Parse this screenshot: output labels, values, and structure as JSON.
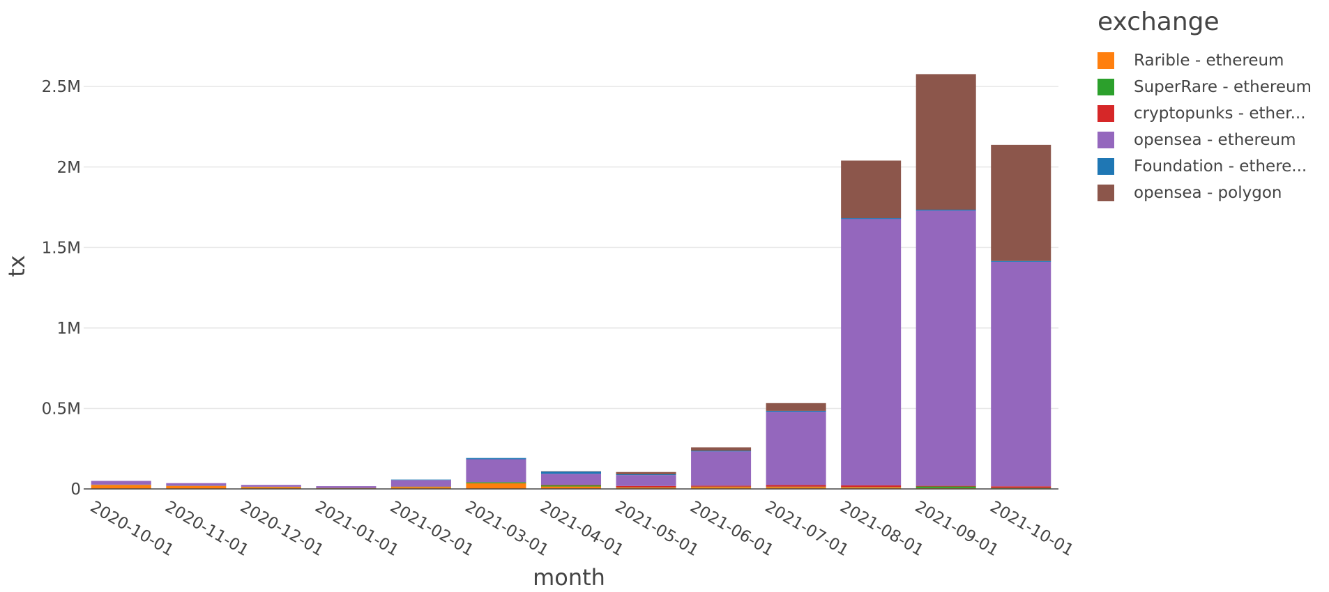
{
  "legend": {
    "title": "exchange",
    "items": [
      {
        "label": "Rarible - ethereum",
        "color": "#ff7f0e"
      },
      {
        "label": "SuperRare - ethereum",
        "color": "#2ca02c"
      },
      {
        "label": "cryptopunks - ether...",
        "color": "#d62728"
      },
      {
        "label": "opensea - ethereum",
        "color": "#9467bd"
      },
      {
        "label": "Foundation - ethere...",
        "color": "#1f77b4"
      },
      {
        "label": "opensea - polygon",
        "color": "#8c564b"
      }
    ]
  },
  "chart_data": {
    "type": "bar",
    "barmode": "stack",
    "xlabel": "month",
    "ylabel": "tx",
    "ylim": [
      0,
      2700000
    ],
    "yticks": [
      0,
      500000,
      1000000,
      1500000,
      2000000,
      2500000
    ],
    "ytick_labels": [
      "0",
      "0.5M",
      "1M",
      "1.5M",
      "2M",
      "2.5M"
    ],
    "grid": true,
    "legend_position": "top-right",
    "categories": [
      "2020-10-01",
      "2020-11-01",
      "2020-12-01",
      "2021-01-01",
      "2021-02-01",
      "2021-03-01",
      "2021-04-01",
      "2021-05-01",
      "2021-06-01",
      "2021-07-01",
      "2021-08-01",
      "2021-09-01",
      "2021-10-01"
    ],
    "series": [
      {
        "name": "Rarible - ethereum",
        "color": "#ff7f0e",
        "values": [
          25000,
          18000,
          12000,
          4000,
          12000,
          35000,
          15000,
          8000,
          12000,
          12000,
          10000,
          5000,
          3000
        ]
      },
      {
        "name": "SuperRare - ethereum",
        "color": "#2ca02c",
        "values": [
          1000,
          1000,
          1000,
          1000,
          2000,
          6000,
          8000,
          2000,
          2000,
          2000,
          2000,
          10000,
          3000
        ]
      },
      {
        "name": "cryptopunks - ether...",
        "color": "#d62728",
        "values": [
          1000,
          1000,
          1000,
          1000,
          1000,
          1000,
          3000,
          8000,
          6000,
          10000,
          10000,
          4000,
          10000
        ]
      },
      {
        "name": "opensea - ethereum",
        "color": "#9467bd",
        "values": [
          23000,
          16000,
          11000,
          11000,
          40000,
          142000,
          68000,
          68000,
          213000,
          455000,
          1655000,
          1710000,
          1395000
        ]
      },
      {
        "name": "Foundation - ethere...",
        "color": "#1f77b4",
        "values": [
          0,
          0,
          0,
          0,
          3000,
          8000,
          14000,
          5000,
          5000,
          6000,
          6000,
          6000,
          5000
        ]
      },
      {
        "name": "opensea - polygon",
        "color": "#8c564b",
        "values": [
          0,
          0,
          0,
          0,
          0,
          0,
          2000,
          14000,
          20000,
          48000,
          357000,
          842000,
          722000
        ]
      }
    ]
  }
}
